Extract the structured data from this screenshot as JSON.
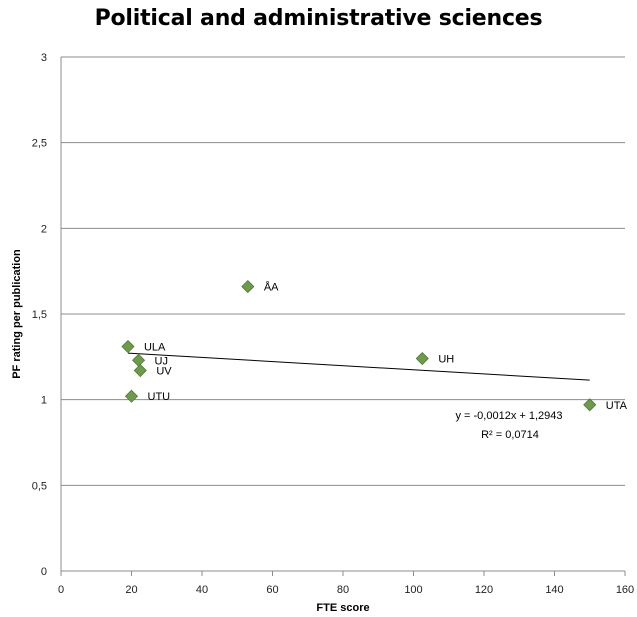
{
  "chart_data": {
    "type": "scatter",
    "title": "Political and administrative sciences",
    "xlabel": "FTE score",
    "ylabel": "PF rating per publication",
    "xlim": [
      0,
      160
    ],
    "ylim": [
      0,
      3
    ],
    "x_ticks": [
      "0",
      "20",
      "40",
      "60",
      "80",
      "100",
      "120",
      "140",
      "160"
    ],
    "y_ticks": [
      "0",
      "0,5",
      "1",
      "1,5",
      "2",
      "2,5",
      "3"
    ],
    "grid": "horizontal",
    "marker_color": "#6f9a4e",
    "points": [
      {
        "label": "ÅA",
        "x": 53,
        "y": 1.66
      },
      {
        "label": "ULA",
        "x": 19,
        "y": 1.31
      },
      {
        "label": "UJ",
        "x": 22,
        "y": 1.23
      },
      {
        "label": "UV",
        "x": 22.5,
        "y": 1.17
      },
      {
        "label": "UTU",
        "x": 20,
        "y": 1.02
      },
      {
        "label": "UH",
        "x": 102.5,
        "y": 1.24
      },
      {
        "label": "UTA",
        "x": 150,
        "y": 0.97
      }
    ],
    "trendline": {
      "slope": -0.0012,
      "intercept": 1.2943,
      "x_range": [
        19,
        150
      ],
      "equation": "y = -0,0012x + 1,2943",
      "r_squared": "R² = 0,0714"
    }
  }
}
